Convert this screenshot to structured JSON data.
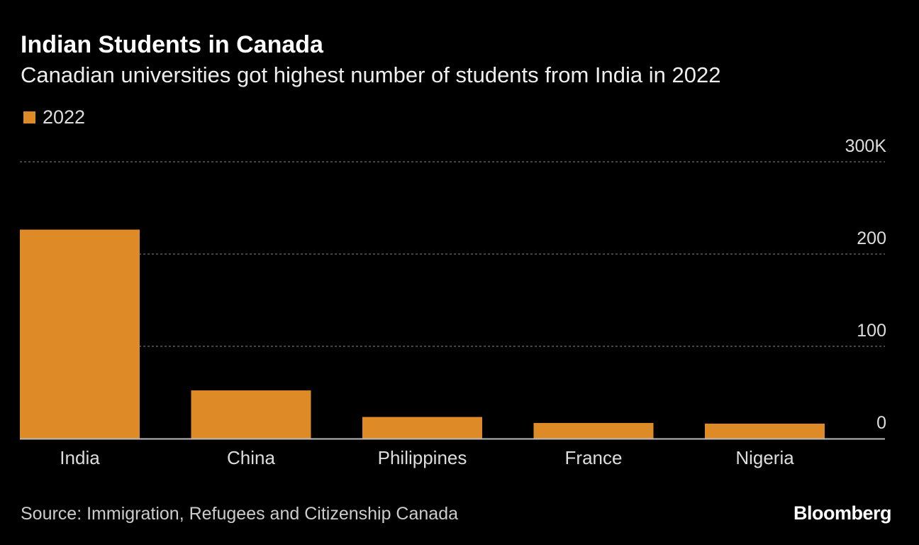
{
  "title": "Indian Students in Canada",
  "subtitle": "Canadian universities got highest number of students from India in 2022",
  "source": "Source: Immigration, Refugees and Citizenship Canada",
  "logo": "Bloomberg",
  "colors": {
    "bar": "#DE8A26",
    "background": "#000000"
  },
  "chart_data": {
    "type": "bar",
    "title": "Indian Students in Canada",
    "subtitle": "Canadian universities got highest number of students from India in 2022",
    "categories": [
      "India",
      "China",
      "Philippines",
      "France",
      "Nigeria"
    ],
    "series": [
      {
        "name": "2022",
        "values": [
          226.5,
          52.2,
          23.4,
          16.9,
          16.2
        ]
      }
    ],
    "ylim": [
      0,
      300
    ],
    "yticks": [
      0,
      100,
      200,
      300
    ],
    "ytick_labels": [
      "0",
      "100",
      "200",
      "300K"
    ],
    "ylabel": "",
    "xlabel": "",
    "grid": true,
    "legend": "top-left"
  }
}
